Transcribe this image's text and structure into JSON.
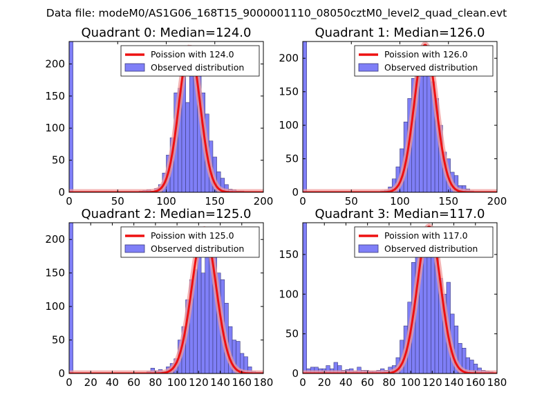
{
  "figure": {
    "suptitle": "Data file: modeM0/AS1G06_168T15_9000001110_08050cztM0_level2_quad_clean.evt"
  },
  "chart_data": [
    {
      "type": "bar",
      "title": "Quadrant 0: Median=124.0",
      "xlim": [
        0,
        200
      ],
      "ylim": [
        0,
        235
      ],
      "xticks": [
        0,
        50,
        100,
        150,
        200
      ],
      "yticks": [
        0,
        50,
        100,
        150,
        200
      ],
      "bin_width": 4.0,
      "bars": [
        {
          "x": 0,
          "y": 235
        },
        {
          "x": 72,
          "y": 2
        },
        {
          "x": 76,
          "y": 3
        },
        {
          "x": 80,
          "y": 4
        },
        {
          "x": 84,
          "y": 2
        },
        {
          "x": 88,
          "y": 6
        },
        {
          "x": 92,
          "y": 12
        },
        {
          "x": 96,
          "y": 30
        },
        {
          "x": 100,
          "y": 58
        },
        {
          "x": 104,
          "y": 85
        },
        {
          "x": 108,
          "y": 155
        },
        {
          "x": 112,
          "y": 162
        },
        {
          "x": 116,
          "y": 180
        },
        {
          "x": 120,
          "y": 140
        },
        {
          "x": 124,
          "y": 225
        },
        {
          "x": 128,
          "y": 220
        },
        {
          "x": 132,
          "y": 185
        },
        {
          "x": 136,
          "y": 155
        },
        {
          "x": 140,
          "y": 122
        },
        {
          "x": 144,
          "y": 80
        },
        {
          "x": 148,
          "y": 55
        },
        {
          "x": 152,
          "y": 32
        },
        {
          "x": 156,
          "y": 22
        },
        {
          "x": 160,
          "y": 12
        },
        {
          "x": 164,
          "y": 5
        },
        {
          "x": 168,
          "y": 4
        },
        {
          "x": 172,
          "y": 2
        },
        {
          "x": 176,
          "y": 2
        },
        {
          "x": 180,
          "y": 1
        }
      ],
      "curve": {
        "mean": 124.0,
        "peak": 225,
        "sigma": 11.0
      },
      "legend": {
        "line_label": "Poission with 124.0",
        "bar_label": "Observed distribution",
        "position": "top-right"
      }
    },
    {
      "type": "bar",
      "title": "Quadrant 1: Median=126.0",
      "xlim": [
        0,
        200
      ],
      "ylim": [
        0,
        225
      ],
      "xticks": [
        0,
        50,
        100,
        150,
        200
      ],
      "yticks": [
        0,
        50,
        100,
        150,
        200
      ],
      "bin_width": 4.0,
      "bars": [
        {
          "x": 0,
          "y": 225
        },
        {
          "x": 76,
          "y": 1
        },
        {
          "x": 80,
          "y": 2
        },
        {
          "x": 84,
          "y": 3
        },
        {
          "x": 88,
          "y": 8
        },
        {
          "x": 92,
          "y": 20
        },
        {
          "x": 96,
          "y": 38
        },
        {
          "x": 100,
          "y": 65
        },
        {
          "x": 104,
          "y": 105
        },
        {
          "x": 108,
          "y": 140
        },
        {
          "x": 112,
          "y": 170
        },
        {
          "x": 116,
          "y": 205
        },
        {
          "x": 120,
          "y": 215
        },
        {
          "x": 124,
          "y": 220
        },
        {
          "x": 128,
          "y": 185
        },
        {
          "x": 132,
          "y": 165
        },
        {
          "x": 136,
          "y": 140
        },
        {
          "x": 140,
          "y": 100
        },
        {
          "x": 144,
          "y": 60
        },
        {
          "x": 148,
          "y": 50
        },
        {
          "x": 152,
          "y": 30
        },
        {
          "x": 156,
          "y": 25
        },
        {
          "x": 160,
          "y": 10
        },
        {
          "x": 164,
          "y": 10
        },
        {
          "x": 168,
          "y": 5
        },
        {
          "x": 172,
          "y": 2
        },
        {
          "x": 176,
          "y": 1
        }
      ],
      "curve": {
        "mean": 126.0,
        "peak": 220,
        "sigma": 11.2
      },
      "legend": {
        "line_label": "Poission with 126.0",
        "bar_label": "Observed distribution",
        "position": "top-right"
      }
    },
    {
      "type": "bar",
      "title": "Quadrant 2: Median=125.0",
      "xlim": [
        0,
        180
      ],
      "ylim": [
        0,
        225
      ],
      "xticks": [
        0,
        20,
        40,
        60,
        80,
        100,
        120,
        140,
        160,
        180
      ],
      "yticks": [
        0,
        50,
        100,
        150,
        200
      ],
      "bin_width": 3.6,
      "bars": [
        {
          "x": 0,
          "y": 225
        },
        {
          "x": 72,
          "y": 3
        },
        {
          "x": 75.6,
          "y": 8
        },
        {
          "x": 79.2,
          "y": 4
        },
        {
          "x": 82.8,
          "y": 6
        },
        {
          "x": 86.4,
          "y": 3
        },
        {
          "x": 90,
          "y": 10
        },
        {
          "x": 93.6,
          "y": 15
        },
        {
          "x": 97.2,
          "y": 22
        },
        {
          "x": 100.8,
          "y": 50
        },
        {
          "x": 104.4,
          "y": 70
        },
        {
          "x": 108,
          "y": 110
        },
        {
          "x": 111.6,
          "y": 140
        },
        {
          "x": 115.2,
          "y": 155
        },
        {
          "x": 118.8,
          "y": 180
        },
        {
          "x": 122.4,
          "y": 150
        },
        {
          "x": 126,
          "y": 205
        },
        {
          "x": 129.6,
          "y": 210
        },
        {
          "x": 133.2,
          "y": 180
        },
        {
          "x": 136.8,
          "y": 150
        },
        {
          "x": 140.4,
          "y": 140
        },
        {
          "x": 144,
          "y": 105
        },
        {
          "x": 147.6,
          "y": 70
        },
        {
          "x": 151.2,
          "y": 50
        },
        {
          "x": 154.8,
          "y": 48
        },
        {
          "x": 158.4,
          "y": 30
        },
        {
          "x": 162,
          "y": 25
        },
        {
          "x": 165.6,
          "y": 10
        },
        {
          "x": 169.2,
          "y": 3
        },
        {
          "x": 172.8,
          "y": 2
        },
        {
          "x": 176.4,
          "y": 2
        }
      ],
      "curve": {
        "mean": 125.0,
        "peak": 215,
        "sigma": 11.2
      },
      "legend": {
        "line_label": "Poission with 125.0",
        "bar_label": "Observed distribution",
        "position": "top-right"
      }
    },
    {
      "type": "bar",
      "title": "Quadrant 3: Median=117.0",
      "xlim": [
        0,
        180
      ],
      "ylim": [
        0,
        190
      ],
      "xticks": [
        0,
        20,
        40,
        60,
        80,
        100,
        120,
        140,
        160,
        180
      ],
      "yticks": [
        0,
        50,
        100,
        150
      ],
      "bin_width": 3.6,
      "bars": [
        {
          "x": 0,
          "y": 190
        },
        {
          "x": 3.6,
          "y": 6
        },
        {
          "x": 7.2,
          "y": 8
        },
        {
          "x": 10.8,
          "y": 8
        },
        {
          "x": 14.4,
          "y": 6
        },
        {
          "x": 18,
          "y": 6
        },
        {
          "x": 21.6,
          "y": 10
        },
        {
          "x": 25.2,
          "y": 6
        },
        {
          "x": 28.8,
          "y": 14
        },
        {
          "x": 32.4,
          "y": 10
        },
        {
          "x": 36,
          "y": 4
        },
        {
          "x": 39.6,
          "y": 5
        },
        {
          "x": 43.2,
          "y": 6
        },
        {
          "x": 46.8,
          "y": 3
        },
        {
          "x": 50.4,
          "y": 8
        },
        {
          "x": 54,
          "y": 4
        },
        {
          "x": 57.6,
          "y": 4
        },
        {
          "x": 61.2,
          "y": 3
        },
        {
          "x": 64.8,
          "y": 3
        },
        {
          "x": 68.4,
          "y": 4
        },
        {
          "x": 72,
          "y": 6
        },
        {
          "x": 75.6,
          "y": 4
        },
        {
          "x": 79.2,
          "y": 8
        },
        {
          "x": 82.8,
          "y": 10
        },
        {
          "x": 86.4,
          "y": 20
        },
        {
          "x": 90,
          "y": 42
        },
        {
          "x": 93.6,
          "y": 60
        },
        {
          "x": 97.2,
          "y": 90
        },
        {
          "x": 100.8,
          "y": 140
        },
        {
          "x": 104.4,
          "y": 155
        },
        {
          "x": 108,
          "y": 170
        },
        {
          "x": 111.6,
          "y": 180
        },
        {
          "x": 115.2,
          "y": 155
        },
        {
          "x": 118.8,
          "y": 150
        },
        {
          "x": 122.4,
          "y": 160
        },
        {
          "x": 126,
          "y": 120
        },
        {
          "x": 129.6,
          "y": 100
        },
        {
          "x": 133.2,
          "y": 115
        },
        {
          "x": 136.8,
          "y": 75
        },
        {
          "x": 140.4,
          "y": 60
        },
        {
          "x": 144,
          "y": 38
        },
        {
          "x": 147.6,
          "y": 32
        },
        {
          "x": 151.2,
          "y": 20
        },
        {
          "x": 154.8,
          "y": 17
        },
        {
          "x": 158.4,
          "y": 12
        },
        {
          "x": 162,
          "y": 7
        },
        {
          "x": 165.6,
          "y": 4
        },
        {
          "x": 169.2,
          "y": 3
        },
        {
          "x": 172.8,
          "y": 2
        }
      ],
      "curve": {
        "mean": 117.0,
        "peak": 185,
        "sigma": 10.8
      },
      "legend": {
        "line_label": "Poission with 117.0",
        "bar_label": "Observed distribution",
        "position": "top-right"
      }
    }
  ],
  "colors": {
    "bar_fill": "#7f7ff7",
    "bar_edge": "#3a3a7a",
    "curve": "#ee1111",
    "curve_glow": "#f29b9b"
  }
}
